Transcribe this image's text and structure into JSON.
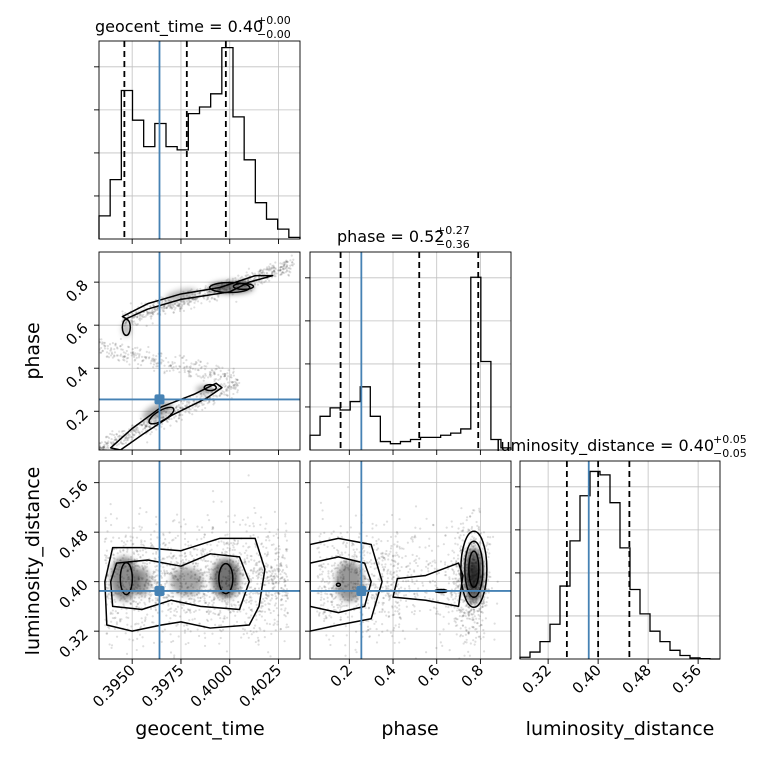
{
  "chart_data": {
    "type": "corner",
    "parameters": [
      "geocent_time",
      "phase",
      "luminosity_distance"
    ],
    "truths": {
      "geocent_time": 0.3964,
      "phase": 0.255,
      "luminosity_distance": 0.385
    },
    "titles": [
      {
        "param": "geocent_time",
        "text": "geocent_time = 0.40",
        "sup": "+0.00",
        "sub": "−0.00"
      },
      {
        "param": "phase",
        "text": "phase = 0.52",
        "sup": "+0.27",
        "sub": "−0.36"
      },
      {
        "param": "luminosity_distance",
        "text": "luminosity_distance = 0.40",
        "sup": "+0.05",
        "sub": "−0.05"
      }
    ],
    "axis_labels": {
      "geocent_time": "geocent_time",
      "phase": "phase",
      "luminosity_distance": "luminosity_distance"
    },
    "ranges": {
      "geocent_time": [
        0.3933,
        0.4036
      ],
      "phase": [
        0.02,
        0.94
      ],
      "luminosity_distance": [
        0.275,
        0.595
      ]
    },
    "ticks": {
      "geocent_time": {
        "values": [
          0.395,
          0.3975,
          0.4,
          0.4025
        ],
        "labels": [
          "0.3950",
          "0.3975",
          "0.4000",
          "0.4025"
        ]
      },
      "phase": {
        "values": [
          0.2,
          0.4,
          0.6,
          0.8
        ],
        "labels": [
          "0.2",
          "0.4",
          "0.6",
          "0.8"
        ]
      },
      "luminosity_distance": {
        "values": [
          0.32,
          0.4,
          0.48,
          0.56
        ],
        "labels": [
          "0.32",
          "0.40",
          "0.48",
          "0.56"
        ]
      }
    },
    "quantiles": {
      "geocent_time": [
        0.3946,
        0.3978,
        0.3998
      ],
      "phase": [
        0.16,
        0.52,
        0.79
      ],
      "luminosity_distance": [
        0.35,
        0.4,
        0.45
      ]
    },
    "histograms": {
      "geocent_time": [
        0.07,
        0.18,
        0.45,
        0.36,
        0.28,
        0.35,
        0.28,
        0.27,
        0.38,
        0.4,
        0.44,
        0.58,
        0.37,
        0.24,
        0.11,
        0.06,
        0.03,
        0.005
      ],
      "phase": [
        0.07,
        0.16,
        0.2,
        0.19,
        0.23,
        0.3,
        0.16,
        0.04,
        0.03,
        0.04,
        0.05,
        0.06,
        0.06,
        0.07,
        0.08,
        0.1,
        0.82,
        0.42,
        0.05,
        0.01
      ],
      "luminosity_distance": [
        0.005,
        0.02,
        0.05,
        0.1,
        0.21,
        0.34,
        0.47,
        0.54,
        0.53,
        0.45,
        0.32,
        0.2,
        0.13,
        0.08,
        0.05,
        0.025,
        0.01,
        0.003,
        0.001,
        0.0
      ]
    },
    "hist_ymax": {
      "geocent_time": 0.6,
      "phase": 0.94,
      "luminosity_distance": 0.57
    },
    "grid": true,
    "colors": {
      "truth": "#4682b4",
      "contour": "#000000",
      "hist": "#000000",
      "grid": "#c0c0c0"
    }
  }
}
